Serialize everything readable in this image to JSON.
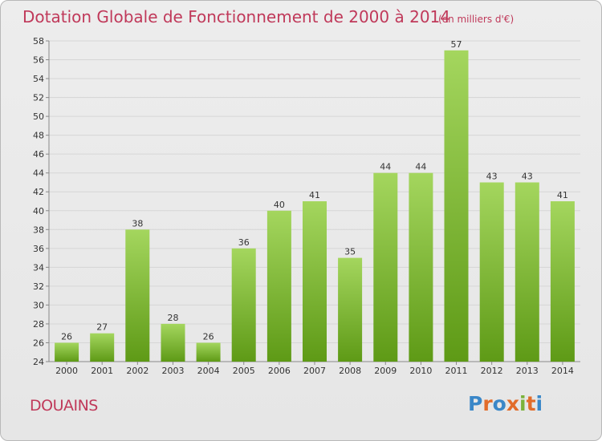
{
  "header": {
    "title": "Dotation Globale de Fonctionnement de 2000 à 2014",
    "unit_note": "(en milliers d'€)"
  },
  "commune": "DOUAINS",
  "logo": {
    "text": "Proxiti",
    "letter_colors": [
      "#3a87c8",
      "#e26c2a",
      "#3a87c8",
      "#e26c2a",
      "#7bb23a",
      "#e26c2a",
      "#3a87c8"
    ]
  },
  "colors": {
    "bar_light": "#a4d65e",
    "bar_dark": "#5e9a16",
    "grid": "#d6d6d6",
    "axis": "#888888",
    "accent": "#c0395a"
  },
  "chart_data": {
    "type": "bar",
    "title": "Dotation Globale de Fonctionnement de 2000 à 2014",
    "subtitle": "(en milliers d'€)",
    "xlabel": "",
    "ylabel": "",
    "categories": [
      "2000",
      "2001",
      "2002",
      "2003",
      "2004",
      "2005",
      "2006",
      "2007",
      "2008",
      "2009",
      "2010",
      "2011",
      "2012",
      "2013",
      "2014"
    ],
    "values": [
      26,
      27,
      38,
      28,
      26,
      36,
      40,
      41,
      35,
      44,
      44,
      57,
      43,
      43,
      41
    ],
    "ylim": [
      24,
      58
    ],
    "ytick_step": 2,
    "grid": true,
    "legend": "none"
  }
}
